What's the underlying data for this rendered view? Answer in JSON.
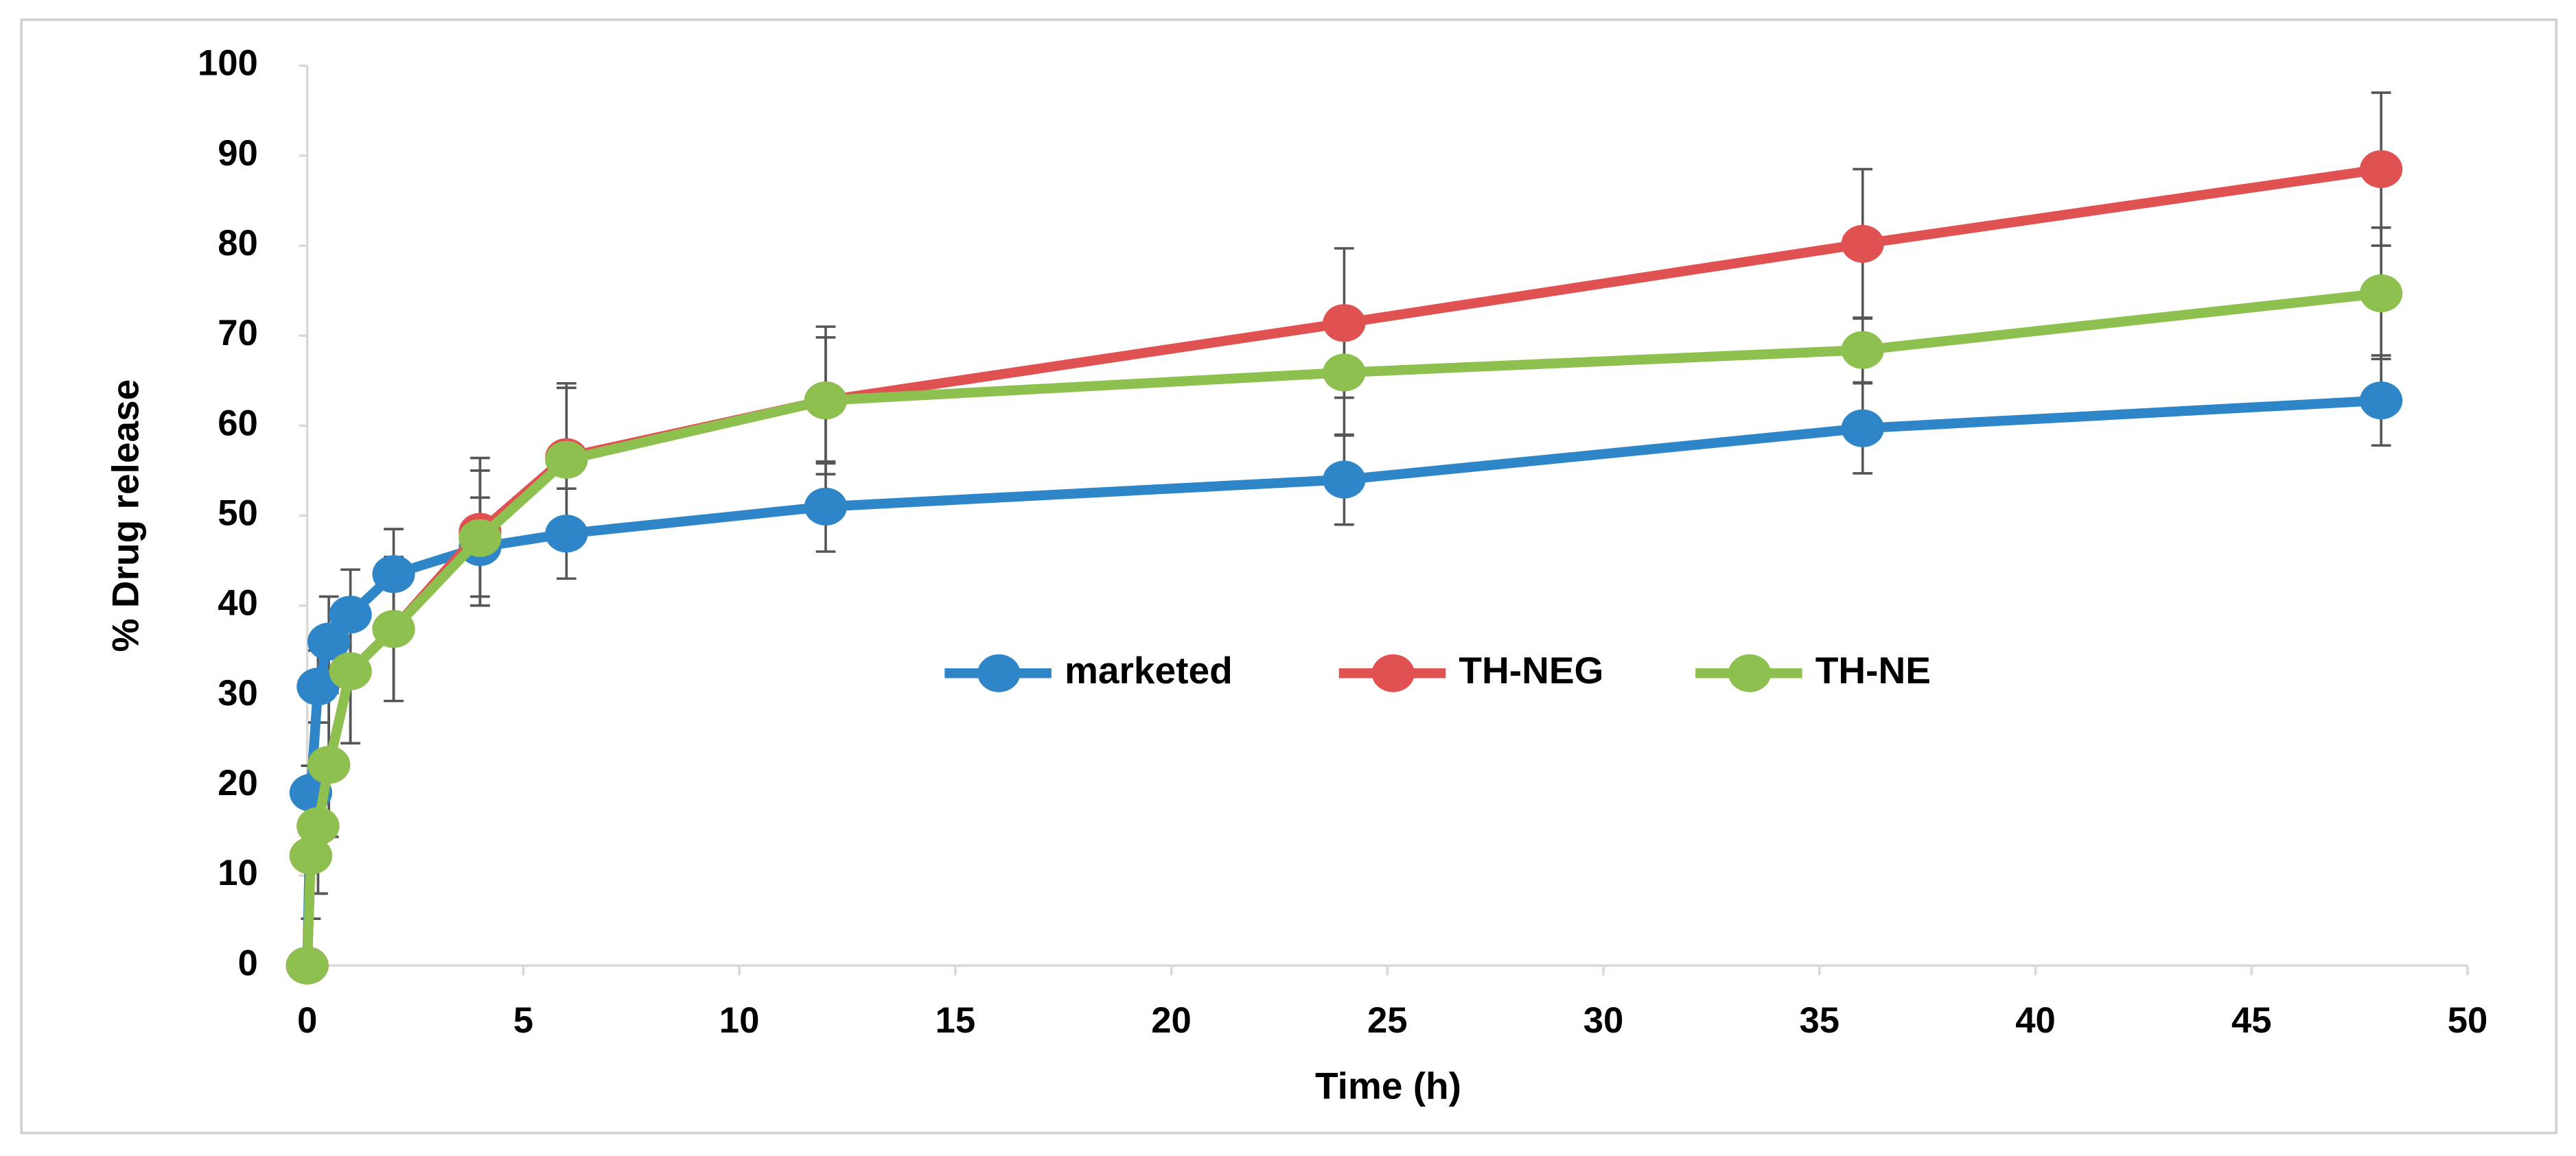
{
  "chart_data": {
    "type": "line",
    "x_label": "Time (h)",
    "y_label": "% Drug release",
    "x": [
      0,
      0.083,
      0.25,
      0.5,
      1,
      2,
      4,
      6,
      12,
      24,
      36,
      48
    ],
    "series": [
      {
        "name": "marketed",
        "color": "#2e86c8",
        "values": [
          0,
          19.2,
          31,
          36,
          39,
          43.5,
          46.5,
          48,
          51,
          54,
          59.7,
          62.8
        ],
        "errors": [
          0,
          3,
          4,
          5,
          5,
          5,
          5.5,
          5,
          5,
          5,
          5,
          5
        ]
      },
      {
        "name": "TH-NEG",
        "color": "#e05252",
        "values": [
          0,
          12.2,
          15.5,
          22.3,
          32.7,
          37.4,
          48.2,
          56.5,
          62.8,
          71.4,
          80.2,
          88.5
        ],
        "errors": [
          0,
          7,
          7.5,
          8,
          8,
          8,
          8.2,
          8.2,
          8.2,
          8.3,
          8.3,
          8.5
        ]
      },
      {
        "name": "TH-NE",
        "color": "#8dc04f",
        "values": [
          0,
          12.2,
          15.5,
          22.3,
          32.7,
          37.4,
          47.5,
          56.2,
          62.8,
          65.9,
          68.4,
          74.7
        ],
        "errors": [
          0,
          7,
          7.5,
          8,
          8,
          8,
          7.5,
          8,
          7,
          7,
          3.6,
          7.3
        ]
      }
    ],
    "xlim": [
      0,
      50
    ],
    "xticks": [
      0,
      5,
      10,
      15,
      20,
      25,
      30,
      35,
      40,
      45,
      50
    ],
    "ylim": [
      0,
      100
    ],
    "yticks": [
      0,
      10,
      20,
      30,
      40,
      50,
      60,
      70,
      80,
      90,
      100
    ],
    "grid": false,
    "legend": "center"
  }
}
